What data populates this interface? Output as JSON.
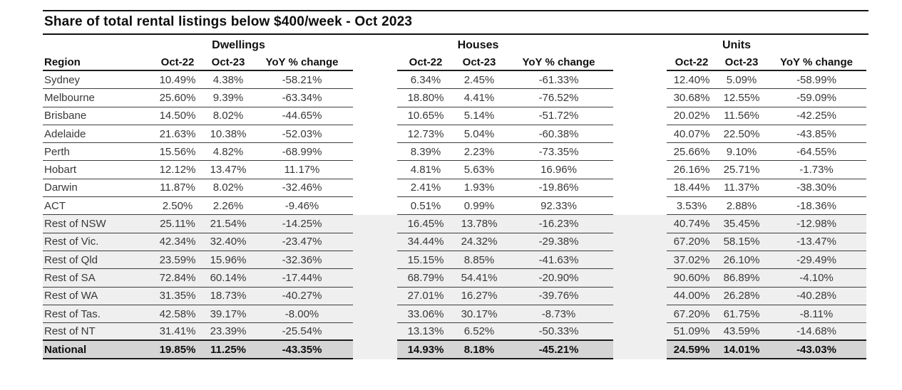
{
  "title": "Share of total rental listings below $400/week - Oct 2023",
  "colors": {
    "stripe_background": "#efefef",
    "total_row_background": "#d5d5d5",
    "rule_color": "#1c1c1c",
    "text_color": "#383838"
  },
  "chart_data": {
    "type": "table",
    "title": "Share of total rental listings below $400/week - Oct 2023",
    "region_column_header": "Region",
    "column_groups": [
      "Dwellings",
      "Houses",
      "Units"
    ],
    "sub_columns": [
      "Oct-22",
      "Oct-23",
      "YoY % change"
    ],
    "rows": [
      {
        "region": "Sydney",
        "row_type": "capital",
        "dwellings": [
          "10.49%",
          "4.38%",
          "-58.21%"
        ],
        "houses": [
          "6.34%",
          "2.45%",
          "-61.33%"
        ],
        "units": [
          "12.40%",
          "5.09%",
          "-58.99%"
        ]
      },
      {
        "region": "Melbourne",
        "row_type": "capital",
        "dwellings": [
          "25.60%",
          "9.39%",
          "-63.34%"
        ],
        "houses": [
          "18.80%",
          "4.41%",
          "-76.52%"
        ],
        "units": [
          "30.68%",
          "12.55%",
          "-59.09%"
        ]
      },
      {
        "region": "Brisbane",
        "row_type": "capital",
        "dwellings": [
          "14.50%",
          "8.02%",
          "-44.65%"
        ],
        "houses": [
          "10.65%",
          "5.14%",
          "-51.72%"
        ],
        "units": [
          "20.02%",
          "11.56%",
          "-42.25%"
        ]
      },
      {
        "region": "Adelaide",
        "row_type": "capital",
        "dwellings": [
          "21.63%",
          "10.38%",
          "-52.03%"
        ],
        "houses": [
          "12.73%",
          "5.04%",
          "-60.38%"
        ],
        "units": [
          "40.07%",
          "22.50%",
          "-43.85%"
        ]
      },
      {
        "region": "Perth",
        "row_type": "capital",
        "dwellings": [
          "15.56%",
          "4.82%",
          "-68.99%"
        ],
        "houses": [
          "8.39%",
          "2.23%",
          "-73.35%"
        ],
        "units": [
          "25.66%",
          "9.10%",
          "-64.55%"
        ]
      },
      {
        "region": "Hobart",
        "row_type": "capital",
        "dwellings": [
          "12.12%",
          "13.47%",
          "11.17%"
        ],
        "houses": [
          "4.81%",
          "5.63%",
          "16.96%"
        ],
        "units": [
          "26.16%",
          "25.71%",
          "-1.73%"
        ]
      },
      {
        "region": "Darwin",
        "row_type": "capital",
        "dwellings": [
          "11.87%",
          "8.02%",
          "-32.46%"
        ],
        "houses": [
          "2.41%",
          "1.93%",
          "-19.86%"
        ],
        "units": [
          "18.44%",
          "11.37%",
          "-38.30%"
        ]
      },
      {
        "region": "ACT",
        "row_type": "capital",
        "dwellings": [
          "2.50%",
          "2.26%",
          "-9.46%"
        ],
        "houses": [
          "0.51%",
          "0.99%",
          "92.33%"
        ],
        "units": [
          "3.53%",
          "2.88%",
          "-18.36%"
        ]
      },
      {
        "region": "Rest of NSW",
        "row_type": "rest",
        "dwellings": [
          "25.11%",
          "21.54%",
          "-14.25%"
        ],
        "houses": [
          "16.45%",
          "13.78%",
          "-16.23%"
        ],
        "units": [
          "40.74%",
          "35.45%",
          "-12.98%"
        ]
      },
      {
        "region": "Rest of Vic.",
        "row_type": "rest",
        "dwellings": [
          "42.34%",
          "32.40%",
          "-23.47%"
        ],
        "houses": [
          "34.44%",
          "24.32%",
          "-29.38%"
        ],
        "units": [
          "67.20%",
          "58.15%",
          "-13.47%"
        ]
      },
      {
        "region": "Rest of Qld",
        "row_type": "rest",
        "dwellings": [
          "23.59%",
          "15.96%",
          "-32.36%"
        ],
        "houses": [
          "15.15%",
          "8.85%",
          "-41.63%"
        ],
        "units": [
          "37.02%",
          "26.10%",
          "-29.49%"
        ]
      },
      {
        "region": "Rest of SA",
        "row_type": "rest",
        "dwellings": [
          "72.84%",
          "60.14%",
          "-17.44%"
        ],
        "houses": [
          "68.79%",
          "54.41%",
          "-20.90%"
        ],
        "units": [
          "90.60%",
          "86.89%",
          "-4.10%"
        ]
      },
      {
        "region": "Rest of WA",
        "row_type": "rest",
        "dwellings": [
          "31.35%",
          "18.73%",
          "-40.27%"
        ],
        "houses": [
          "27.01%",
          "16.27%",
          "-39.76%"
        ],
        "units": [
          "44.00%",
          "26.28%",
          "-40.28%"
        ]
      },
      {
        "region": "Rest of Tas.",
        "row_type": "rest",
        "dwellings": [
          "42.58%",
          "39.17%",
          "-8.00%"
        ],
        "houses": [
          "33.06%",
          "30.17%",
          "-8.73%"
        ],
        "units": [
          "67.20%",
          "61.75%",
          "-8.11%"
        ]
      },
      {
        "region": "Rest of NT",
        "row_type": "rest",
        "dwellings": [
          "31.41%",
          "23.39%",
          "-25.54%"
        ],
        "houses": [
          "13.13%",
          "6.52%",
          "-50.33%"
        ],
        "units": [
          "51.09%",
          "43.59%",
          "-14.68%"
        ]
      },
      {
        "region": "National",
        "row_type": "national",
        "dwellings": [
          "19.85%",
          "11.25%",
          "-43.35%"
        ],
        "houses": [
          "14.93%",
          "8.18%",
          "-45.21%"
        ],
        "units": [
          "24.59%",
          "14.01%",
          "-43.03%"
        ]
      }
    ]
  }
}
